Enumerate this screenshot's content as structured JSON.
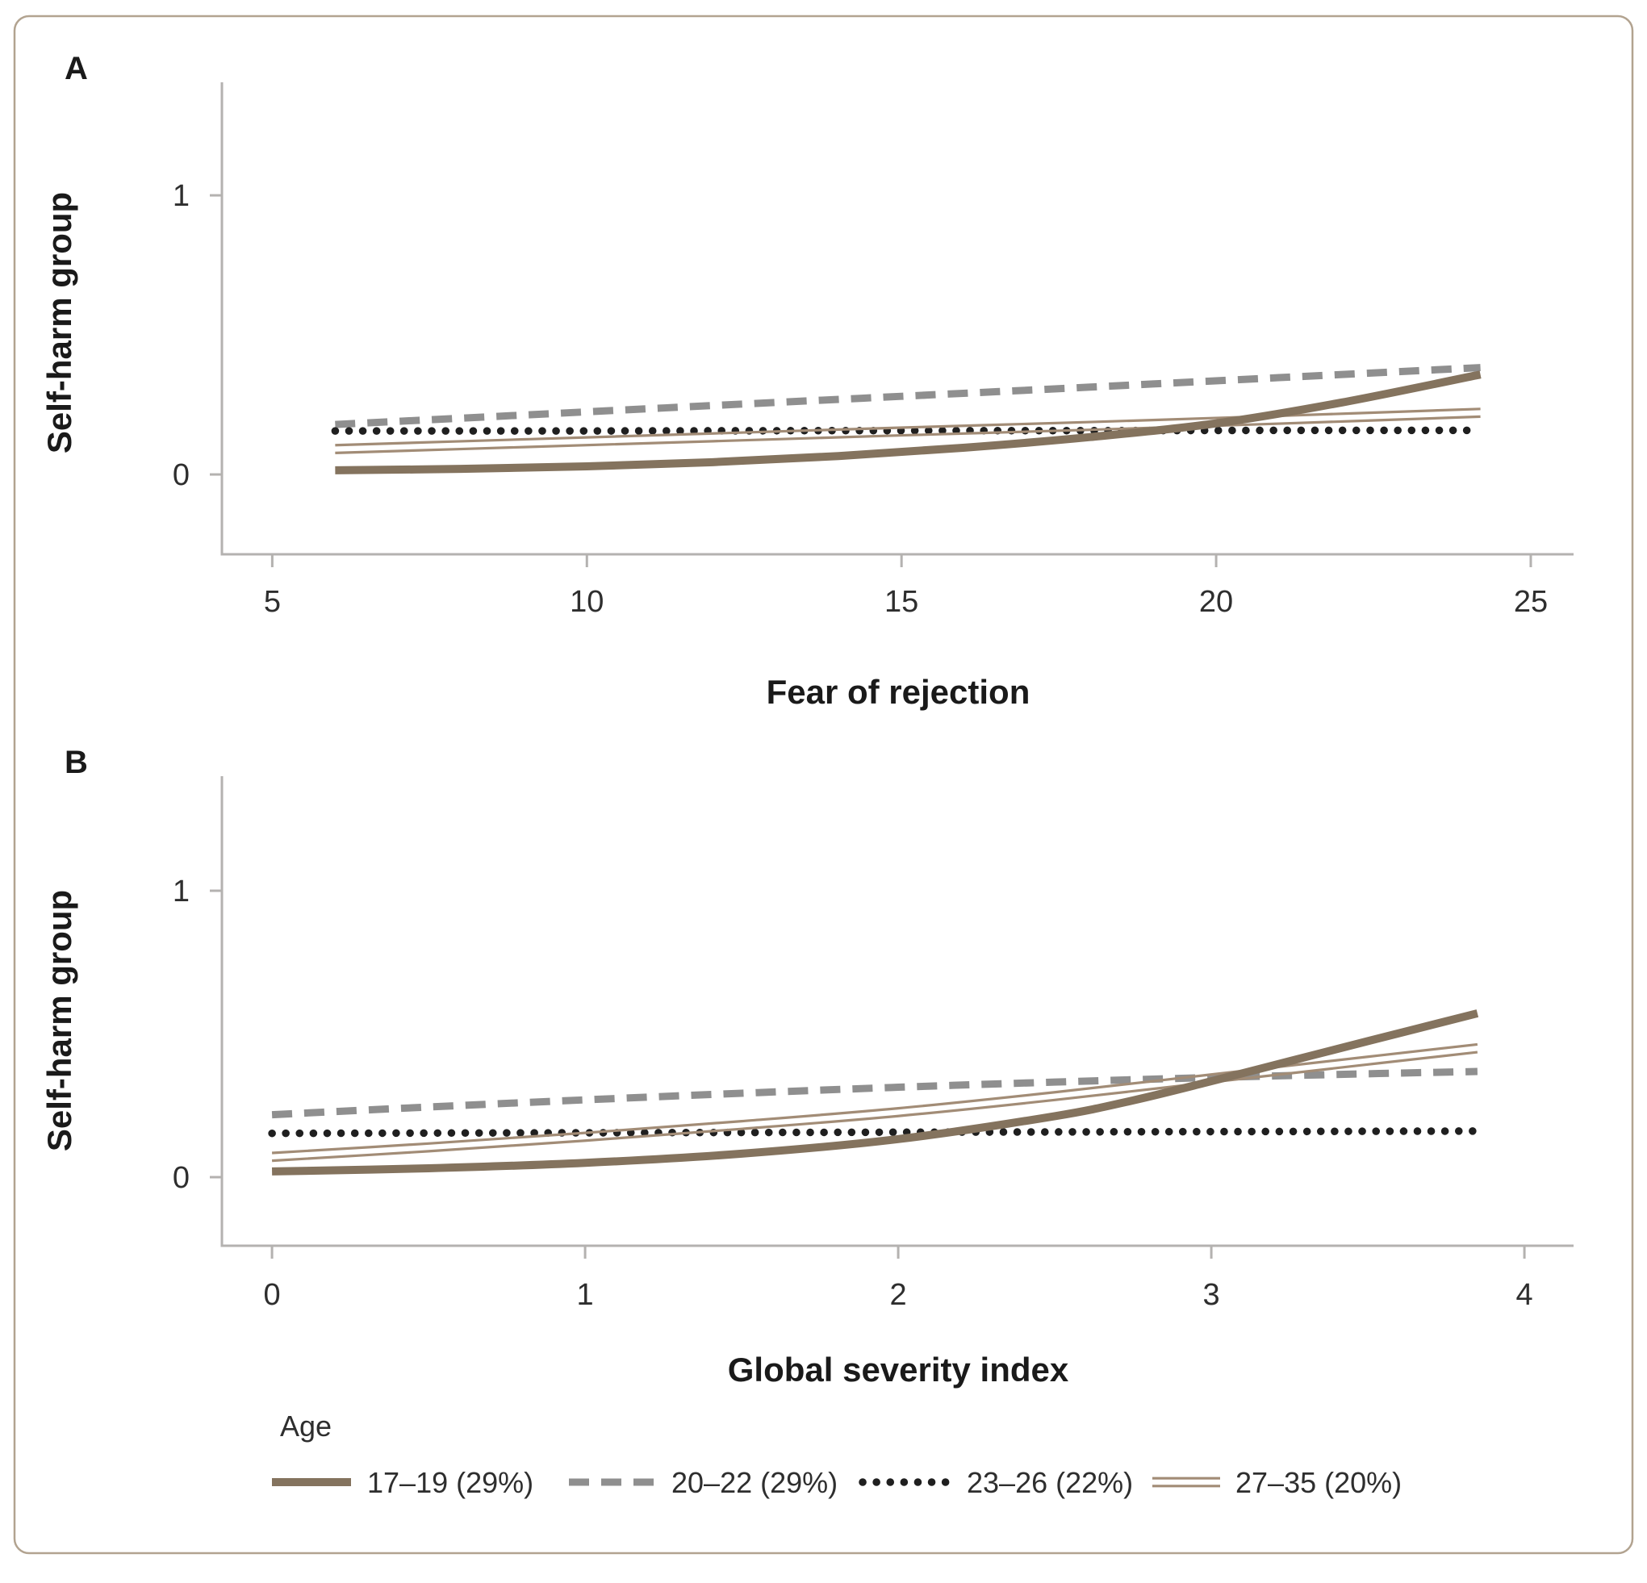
{
  "figure": {
    "border_color": "#b2a390",
    "background": "#ffffff",
    "axis_color": "#b4b2b0",
    "text_color": "#2e2e2e"
  },
  "legend": {
    "title": "Age",
    "entries": [
      {
        "label": "17–19 (29%)",
        "style": "solid-thick",
        "color": "#84735e",
        "x": 337,
        "swatch_w": 98
      },
      {
        "label": "20–22 (29%)",
        "style": "dashed",
        "color": "#8f8f8f",
        "x": 705,
        "swatch_w": 105
      },
      {
        "label": "23–26 (22%)",
        "style": "dotted",
        "color": "#1f1f1f",
        "x": 1069,
        "swatch_w": 103
      },
      {
        "label": "27–35 (20%)",
        "style": "double",
        "color": "#a28c76",
        "x": 1428,
        "swatch_w": 84
      }
    ]
  },
  "chart_data": [
    {
      "type": "line",
      "panel": "A",
      "xlabel": "Fear of rejection",
      "ylabel": "Self-harm group",
      "x_ticks": [
        5,
        10,
        15,
        20,
        25
      ],
      "y_ticks": [
        0,
        1
      ],
      "xlim": [
        4.2,
        25.68
      ],
      "ylim": [
        -0.286,
        1.405
      ],
      "grid": false,
      "series": [
        {
          "name": "20–22 (29%)",
          "style": "dashed",
          "color": "#8f8f8f",
          "points": [
            [
              6,
              0.179
            ],
            [
              9,
              0.213
            ],
            [
              12,
              0.247
            ],
            [
              15,
              0.28
            ],
            [
              18,
              0.313
            ],
            [
              21,
              0.347
            ],
            [
              24.2,
              0.383
            ]
          ]
        },
        {
          "name": "23–26 (22%)",
          "style": "dotted",
          "color": "#1f1f1f",
          "points": [
            [
              6,
              0.156
            ],
            [
              10,
              0.156
            ],
            [
              14,
              0.157
            ],
            [
              18,
              0.157
            ],
            [
              21,
              0.158
            ],
            [
              24.2,
              0.158
            ]
          ]
        },
        {
          "name": "27–35 (20%)",
          "style": "double",
          "color": "#a28c76",
          "points": [
            [
              6,
              0.091
            ],
            [
              9,
              0.112
            ],
            [
              12,
              0.133
            ],
            [
              15,
              0.154
            ],
            [
              18,
              0.174
            ],
            [
              21,
              0.196
            ],
            [
              24.2,
              0.221
            ]
          ]
        },
        {
          "name": "17–19 (29%)",
          "style": "solid-thick",
          "color": "#84735e",
          "points": [
            [
              6,
              0.015
            ],
            [
              8,
              0.02
            ],
            [
              10,
              0.029
            ],
            [
              12,
              0.044
            ],
            [
              14,
              0.066
            ],
            [
              16,
              0.096
            ],
            [
              18,
              0.134
            ],
            [
              20,
              0.183
            ],
            [
              22,
              0.258
            ],
            [
              24.2,
              0.358
            ]
          ]
        }
      ]
    },
    {
      "type": "line",
      "panel": "B",
      "xlabel": "Global severity index",
      "ylabel": "Self-harm group",
      "x_ticks": [
        0,
        1,
        2,
        3,
        4
      ],
      "y_ticks": [
        0,
        1
      ],
      "xlim": [
        -0.16,
        4.157
      ],
      "ylim": [
        -0.2394,
        1.4
      ],
      "grid": false,
      "series": [
        {
          "name": "20–22 (29%)",
          "style": "dashed",
          "color": "#8f8f8f",
          "points": [
            [
              0,
              0.218
            ],
            [
              0.5,
              0.245
            ],
            [
              1,
              0.27
            ],
            [
              1.5,
              0.293
            ],
            [
              2,
              0.314
            ],
            [
              2.5,
              0.332
            ],
            [
              3,
              0.348
            ],
            [
              3.5,
              0.361
            ],
            [
              3.85,
              0.369
            ]
          ]
        },
        {
          "name": "23–26 (22%)",
          "style": "dotted",
          "color": "#1f1f1f",
          "points": [
            [
              0,
              0.153
            ],
            [
              1,
              0.155
            ],
            [
              2,
              0.157
            ],
            [
              3,
              0.159
            ],
            [
              3.85,
              0.161
            ]
          ]
        },
        {
          "name": "27–35 (20%)",
          "style": "double",
          "color": "#a28c76",
          "points": [
            [
              0,
              0.071
            ],
            [
              0.5,
              0.104
            ],
            [
              1,
              0.141
            ],
            [
              1.5,
              0.182
            ],
            [
              2,
              0.227
            ],
            [
              2.5,
              0.283
            ],
            [
              3,
              0.345
            ],
            [
              3.5,
              0.407
            ],
            [
              3.85,
              0.45
            ]
          ]
        },
        {
          "name": "17–19 (29%)",
          "style": "solid-thick",
          "color": "#84735e",
          "points": [
            [
              0,
              0.02
            ],
            [
              0.5,
              0.031
            ],
            [
              1,
              0.05
            ],
            [
              1.5,
              0.082
            ],
            [
              2,
              0.133
            ],
            [
              2.5,
              0.213
            ],
            [
              2.75,
              0.268
            ],
            [
              3,
              0.335
            ],
            [
              3.25,
              0.405
            ],
            [
              3.5,
              0.475
            ],
            [
              3.85,
              0.572
            ]
          ]
        }
      ]
    }
  ]
}
